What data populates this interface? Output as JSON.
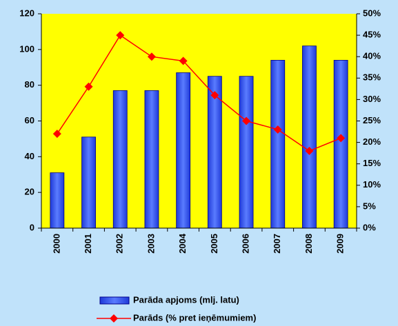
{
  "chart_data": {
    "type": "bar",
    "categories": [
      "2000",
      "2001",
      "2002",
      "2003",
      "2004",
      "2005",
      "2006",
      "2007",
      "2008",
      "2009"
    ],
    "series": [
      {
        "name": "Parāda apjoms (mlj. latu)",
        "color": "#3a5cf0",
        "values": [
          31,
          51,
          77,
          77,
          87,
          85,
          85,
          94,
          102,
          94
        ]
      },
      {
        "name": "Parāds (% pret ieņēmumiem)",
        "color": "#ff0000",
        "type": "line",
        "axis": "y2",
        "values": [
          22,
          33,
          45,
          40,
          39,
          31,
          25,
          23,
          18,
          21
        ]
      }
    ],
    "ylim": [
      0,
      120
    ],
    "yticks": [
      0,
      20,
      40,
      60,
      80,
      100,
      120
    ],
    "y2lim": [
      0,
      50
    ],
    "y2ticks": [
      {
        "value": 0,
        "label": "0%"
      },
      {
        "value": 5,
        "label": "5%"
      },
      {
        "value": 10,
        "label": "10%"
      },
      {
        "value": 15,
        "label": "15%"
      },
      {
        "value": 20,
        "label": "20%"
      },
      {
        "value": 25,
        "label": "25%"
      },
      {
        "value": 30,
        "label": "30%"
      },
      {
        "value": 35,
        "label": "35%"
      },
      {
        "value": 40,
        "label": "40%"
      },
      {
        "value": 45,
        "label": "45%"
      },
      {
        "value": 50,
        "label": "50%"
      }
    ],
    "plot_background": "#ffff00",
    "legend": "bottom"
  }
}
